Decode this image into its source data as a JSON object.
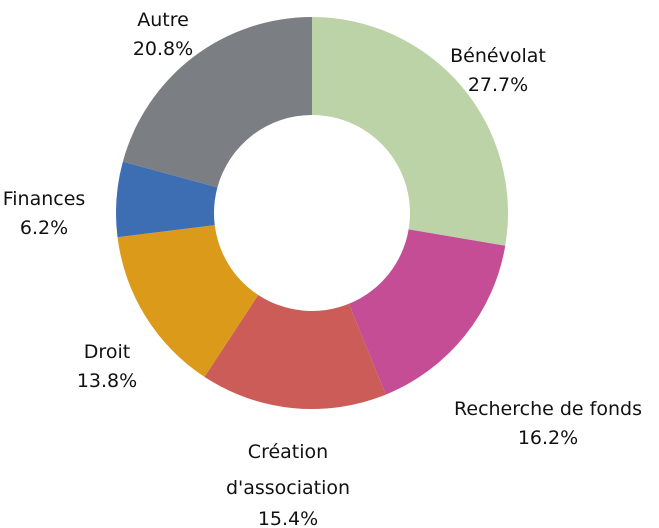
{
  "chart_data": {
    "type": "donut",
    "categories": [
      "Bénévolat",
      "Recherche de fonds",
      "Création d'association",
      "Droit",
      "Finances",
      "Autre"
    ],
    "values": [
      27.7,
      16.2,
      15.4,
      13.8,
      6.2,
      20.8
    ],
    "value_labels": [
      "27.7%",
      "16.2%",
      "15.4%",
      "13.8%",
      "6.2%",
      "20.8%"
    ],
    "colors": [
      "#bcd3a8",
      "#c44d96",
      "#cc5c58",
      "#dc9a1a",
      "#3d6eb4",
      "#7b7e82"
    ]
  }
}
